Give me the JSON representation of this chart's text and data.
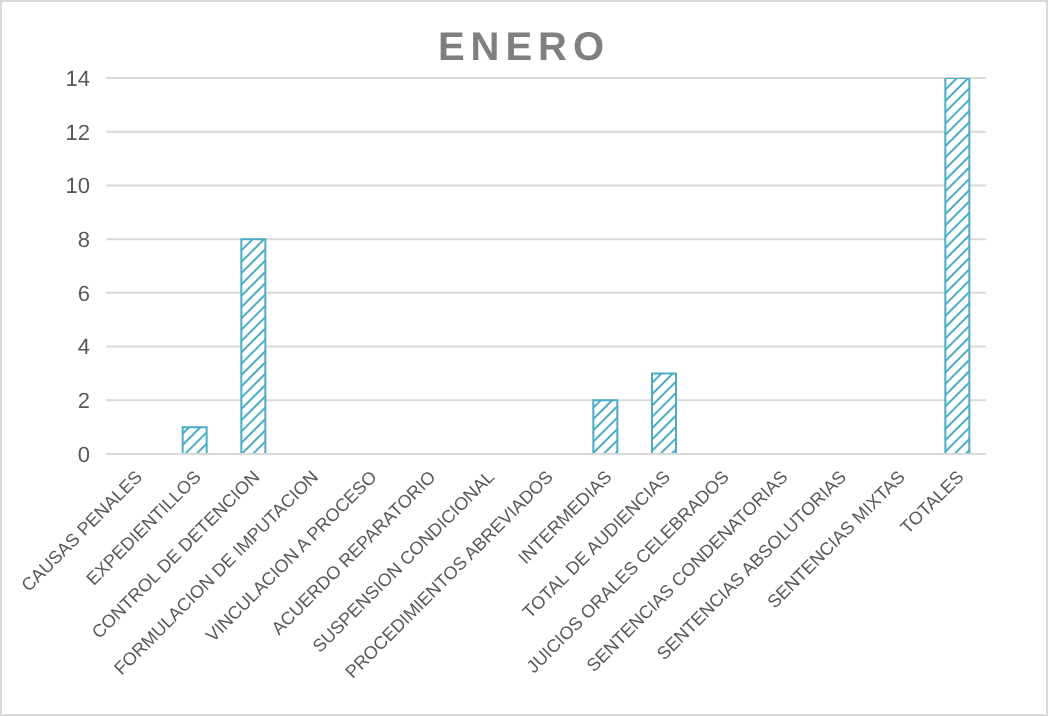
{
  "chart_data": {
    "type": "bar",
    "title": "ENERO",
    "categories": [
      "CAUSAS PENALES",
      "EXPEDIENTILLOS",
      "CONTROL DE DETENCION",
      "FORMULACION DE IMPUTACION",
      "VINCULACION A PROCESO",
      "ACUERDO REPARATORIO",
      "SUSPENSION CONDICIONAL",
      "PROCEDIMIENTOS ABREVIADOS",
      "INTERMEDIAS",
      "TOTAL DE AUDIENCIAS",
      "JUICIOS ORALES CELEBRADOS",
      "SENTENCIAS CONDENATORIAS",
      "SENTENCIAS ABSOLUTORIAS",
      "SENTENCIAS MIXTAS",
      "TOTALES"
    ],
    "values": [
      0,
      1,
      8,
      0,
      0,
      0,
      0,
      0,
      2,
      3,
      0,
      0,
      0,
      0,
      14
    ],
    "color": "#4bacc6",
    "ylim": [
      0,
      14
    ],
    "yticks": [
      0,
      2,
      4,
      6,
      8,
      10,
      12,
      14
    ],
    "grid": "y"
  }
}
